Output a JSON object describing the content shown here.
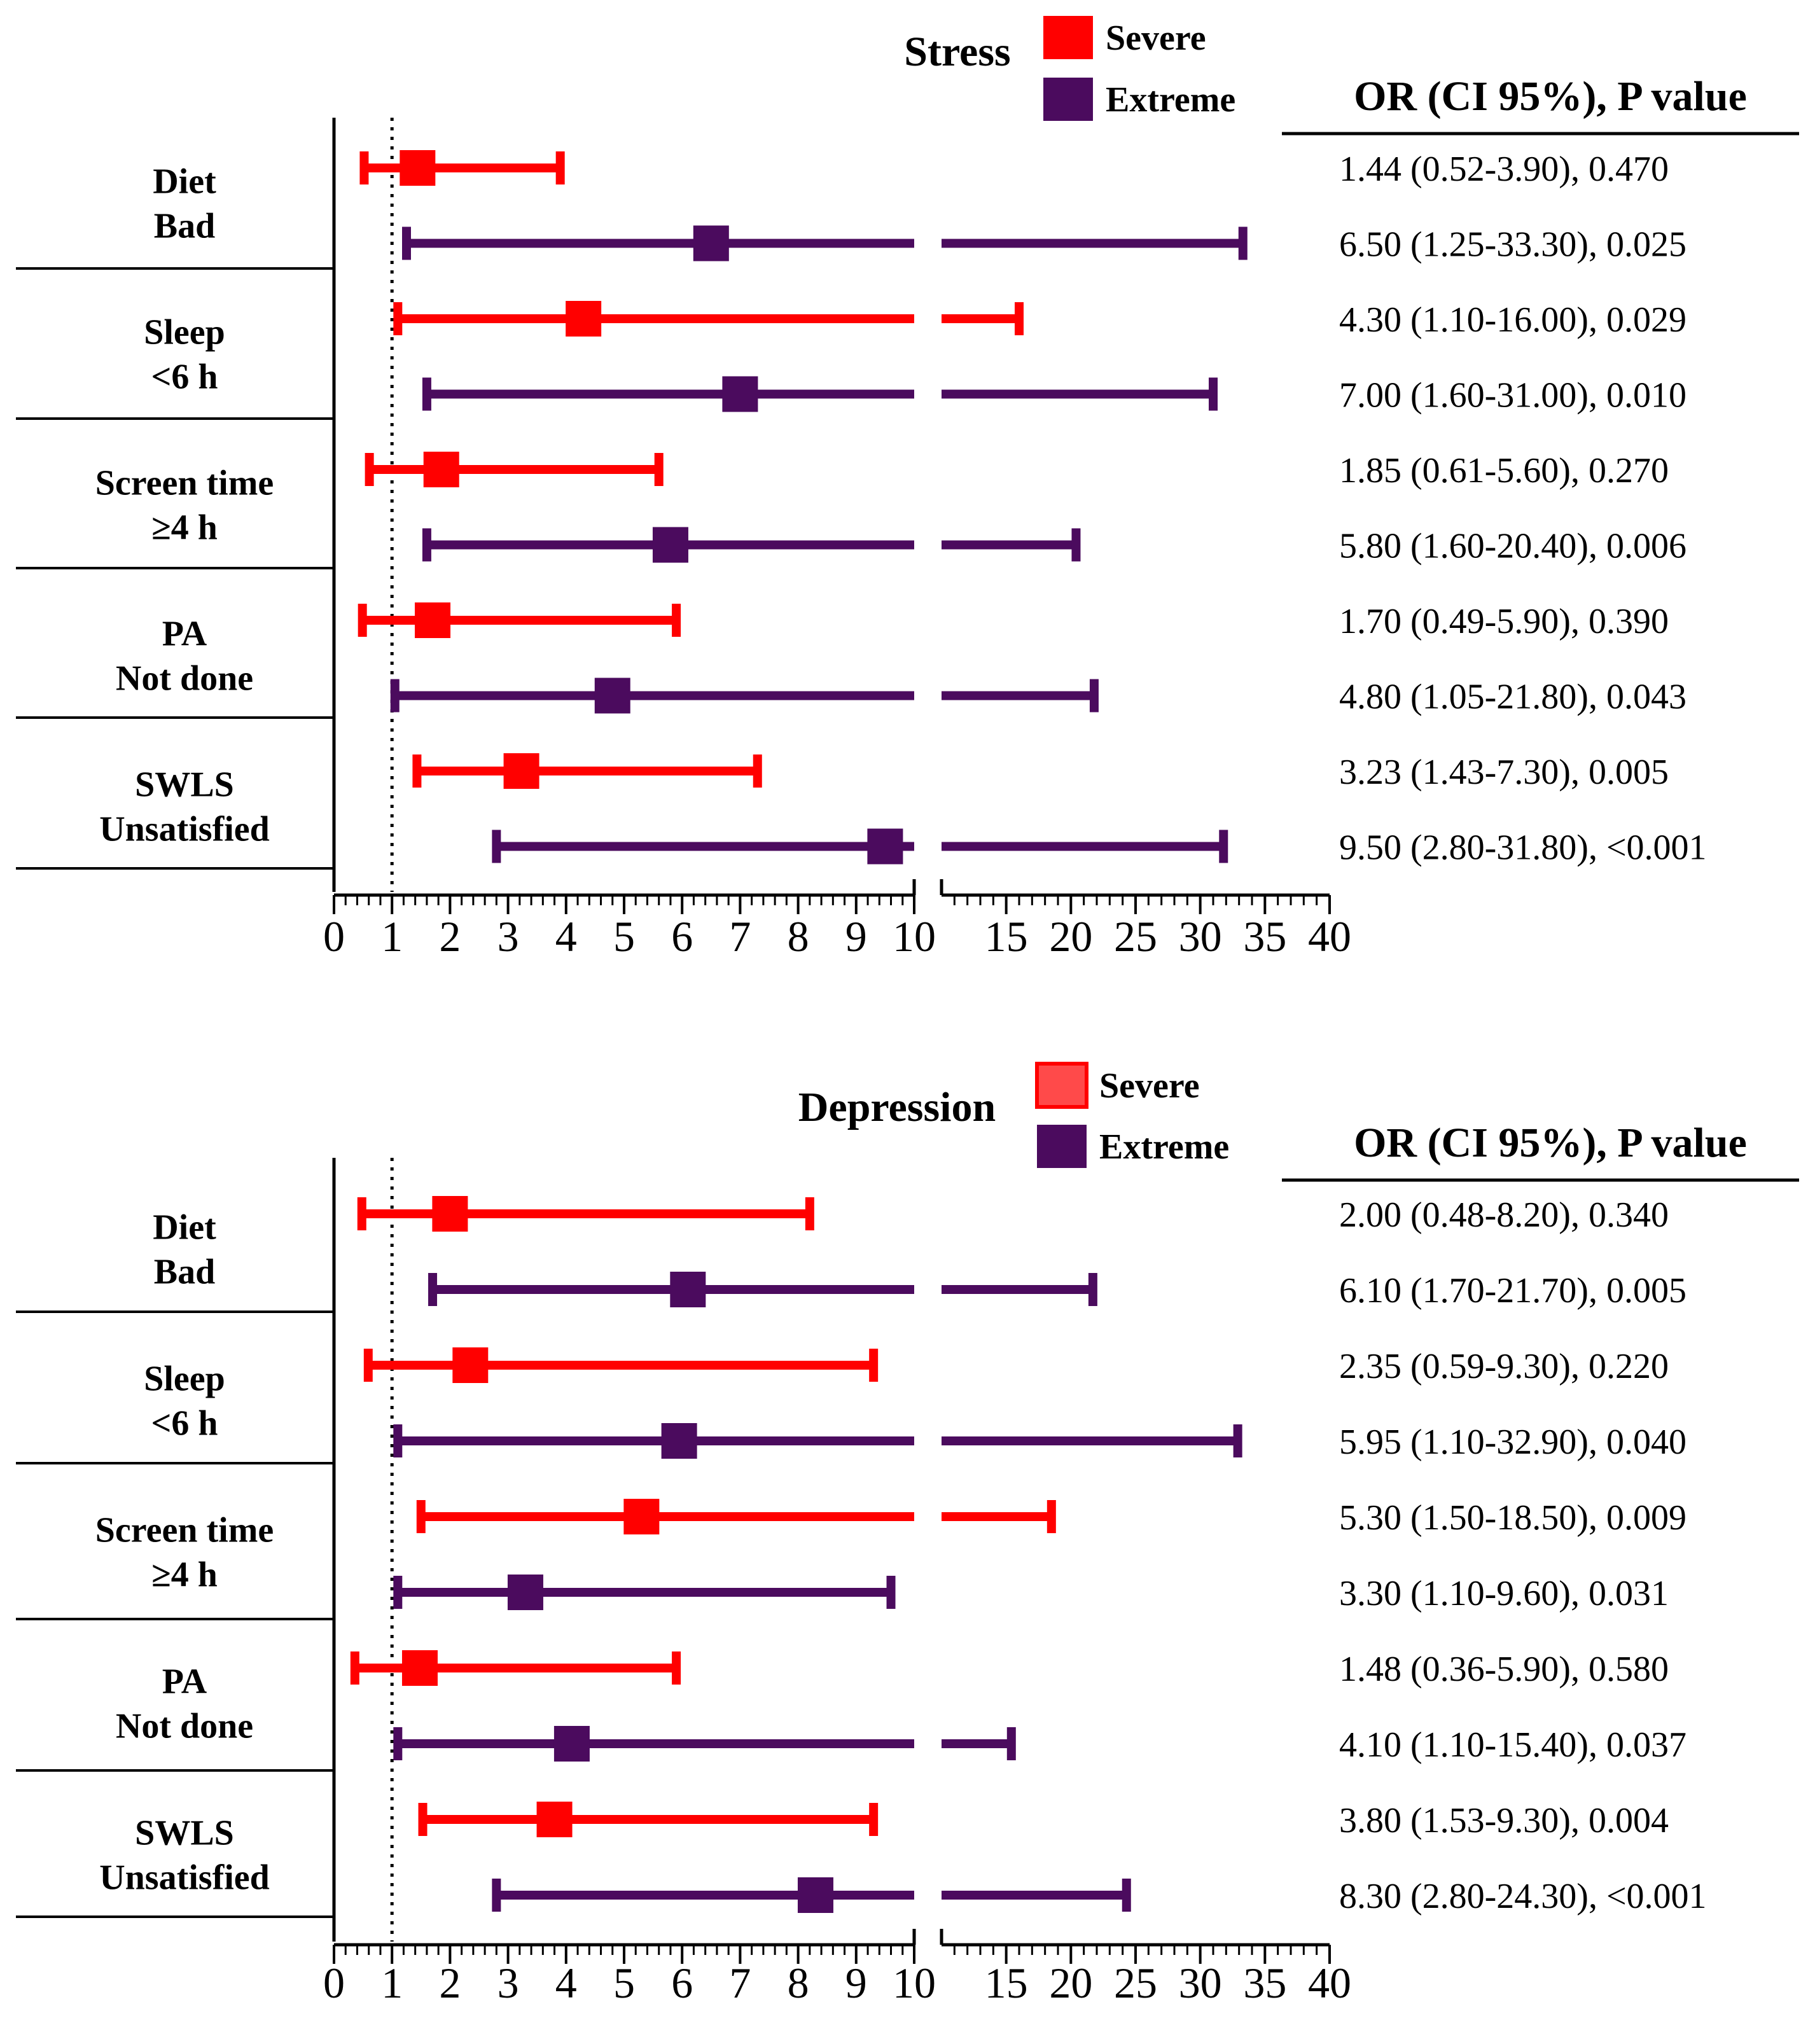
{
  "colors": {
    "severe": "#ff0000",
    "severe_legend_panel2": "#ff4a4a",
    "extreme": "#4b0b5e",
    "axis": "#000000",
    "text": "#000000"
  },
  "chart_data": [
    {
      "type": "forest",
      "title": "Stress",
      "legend": [
        "Severe",
        "Extreme"
      ],
      "legend_position": "top-center",
      "table_header": "OR (CI 95%), P value",
      "reference_line": 1,
      "x_axis": {
        "segments": [
          {
            "range": [
              0,
              10
            ],
            "ticks": [
              0,
              1,
              2,
              3,
              4,
              5,
              6,
              7,
              8,
              9,
              10
            ],
            "minor_step": 0.2
          },
          {
            "range": [
              10,
              40
            ],
            "ticks": [
              15,
              20,
              25,
              30,
              35,
              40
            ],
            "minor_step": 1
          }
        ],
        "tick_labels": [
          "0",
          "1",
          "2",
          "3",
          "4",
          "5",
          "6",
          "7",
          "8",
          "9",
          "10",
          "15",
          "20",
          "25",
          "30",
          "35",
          "40"
        ]
      },
      "groups": [
        {
          "label_lines": [
            "Diet",
            "Bad"
          ],
          "rows": [
            {
              "series": "Severe",
              "or": 1.44,
              "lo": 0.52,
              "hi": 3.9,
              "text": "1.44 (0.52-3.90), 0.470"
            },
            {
              "series": "Extreme",
              "or": 6.5,
              "lo": 1.25,
              "hi": 33.3,
              "text": "6.50 (1.25-33.30), 0.025"
            }
          ]
        },
        {
          "label_lines": [
            "Sleep",
            "<6 h"
          ],
          "rows": [
            {
              "series": "Severe",
              "or": 4.3,
              "lo": 1.1,
              "hi": 16.0,
              "text": "4.30 (1.10-16.00), 0.029"
            },
            {
              "series": "Extreme",
              "or": 7.0,
              "lo": 1.6,
              "hi": 31.0,
              "text": "7.00 (1.60-31.00), 0.010"
            }
          ]
        },
        {
          "label_lines": [
            "Screen time",
            "≥4 h"
          ],
          "rows": [
            {
              "series": "Severe",
              "or": 1.85,
              "lo": 0.61,
              "hi": 5.6,
              "text": "1.85 (0.61-5.60), 0.270"
            },
            {
              "series": "Extreme",
              "or": 5.8,
              "lo": 1.6,
              "hi": 20.4,
              "text": "5.80 (1.60-20.40), 0.006"
            }
          ]
        },
        {
          "label_lines": [
            "PA",
            "Not done"
          ],
          "rows": [
            {
              "series": "Severe",
              "or": 1.7,
              "lo": 0.49,
              "hi": 5.9,
              "text": "1.70 (0.49-5.90), 0.390"
            },
            {
              "series": "Extreme",
              "or": 4.8,
              "lo": 1.05,
              "hi": 21.8,
              "text": "4.80 (1.05-21.80), 0.043"
            }
          ]
        },
        {
          "label_lines": [
            "SWLS",
            "Unsatisfied"
          ],
          "rows": [
            {
              "series": "Severe",
              "or": 3.23,
              "lo": 1.43,
              "hi": 7.3,
              "text": "3.23 (1.43-7.30), 0.005"
            },
            {
              "series": "Extreme",
              "or": 9.5,
              "lo": 2.8,
              "hi": 31.8,
              "text": "9.50 (2.80-31.80), <0.001"
            }
          ]
        }
      ]
    },
    {
      "type": "forest",
      "title": "Depression",
      "legend": [
        "Severe",
        "Extreme"
      ],
      "legend_position": "top-center",
      "table_header": "OR (CI 95%), P value",
      "reference_line": 1,
      "x_axis": {
        "segments": [
          {
            "range": [
              0,
              10
            ],
            "ticks": [
              0,
              1,
              2,
              3,
              4,
              5,
              6,
              7,
              8,
              9,
              10
            ],
            "minor_step": 0.2
          },
          {
            "range": [
              10,
              40
            ],
            "ticks": [
              15,
              20,
              25,
              30,
              35,
              40
            ],
            "minor_step": 1
          }
        ],
        "tick_labels": [
          "0",
          "1",
          "2",
          "3",
          "4",
          "5",
          "6",
          "7",
          "8",
          "9",
          "10",
          "15",
          "20",
          "25",
          "30",
          "35",
          "40"
        ]
      },
      "groups": [
        {
          "label_lines": [
            "Diet",
            "Bad"
          ],
          "rows": [
            {
              "series": "Severe",
              "or": 2.0,
              "lo": 0.48,
              "hi": 8.2,
              "text": "2.00 (0.48-8.20), 0.340"
            },
            {
              "series": "Extreme",
              "or": 6.1,
              "lo": 1.7,
              "hi": 21.7,
              "text": "6.10 (1.70-21.70), 0.005"
            }
          ]
        },
        {
          "label_lines": [
            "Sleep",
            "<6 h"
          ],
          "rows": [
            {
              "series": "Severe",
              "or": 2.35,
              "lo": 0.59,
              "hi": 9.3,
              "text": "2.35 (0.59-9.30), 0.220"
            },
            {
              "series": "Extreme",
              "or": 5.95,
              "lo": 1.1,
              "hi": 32.9,
              "text": "5.95 (1.10-32.90), 0.040"
            }
          ]
        },
        {
          "label_lines": [
            "Screen time",
            "≥4 h"
          ],
          "rows": [
            {
              "series": "Severe",
              "or": 5.3,
              "lo": 1.5,
              "hi": 18.5,
              "text": "5.30 (1.50-18.50), 0.009"
            },
            {
              "series": "Extreme",
              "or": 3.3,
              "lo": 1.1,
              "hi": 9.6,
              "text": "3.30 (1.10-9.60), 0.031"
            }
          ]
        },
        {
          "label_lines": [
            "PA",
            "Not done"
          ],
          "rows": [
            {
              "series": "Severe",
              "or": 1.48,
              "lo": 0.36,
              "hi": 5.9,
              "text": "1.48 (0.36-5.90), 0.580"
            },
            {
              "series": "Extreme",
              "or": 4.1,
              "lo": 1.1,
              "hi": 15.4,
              "text": "4.10 (1.10-15.40), 0.037"
            }
          ]
        },
        {
          "label_lines": [
            "SWLS",
            "Unsatisfied"
          ],
          "rows": [
            {
              "series": "Severe",
              "or": 3.8,
              "lo": 1.53,
              "hi": 9.3,
              "text": "3.80 (1.53-9.30), 0.004"
            },
            {
              "series": "Extreme",
              "or": 8.3,
              "lo": 2.8,
              "hi": 24.3,
              "text": "8.30 (2.80-24.30), <0.001"
            }
          ]
        }
      ]
    }
  ]
}
